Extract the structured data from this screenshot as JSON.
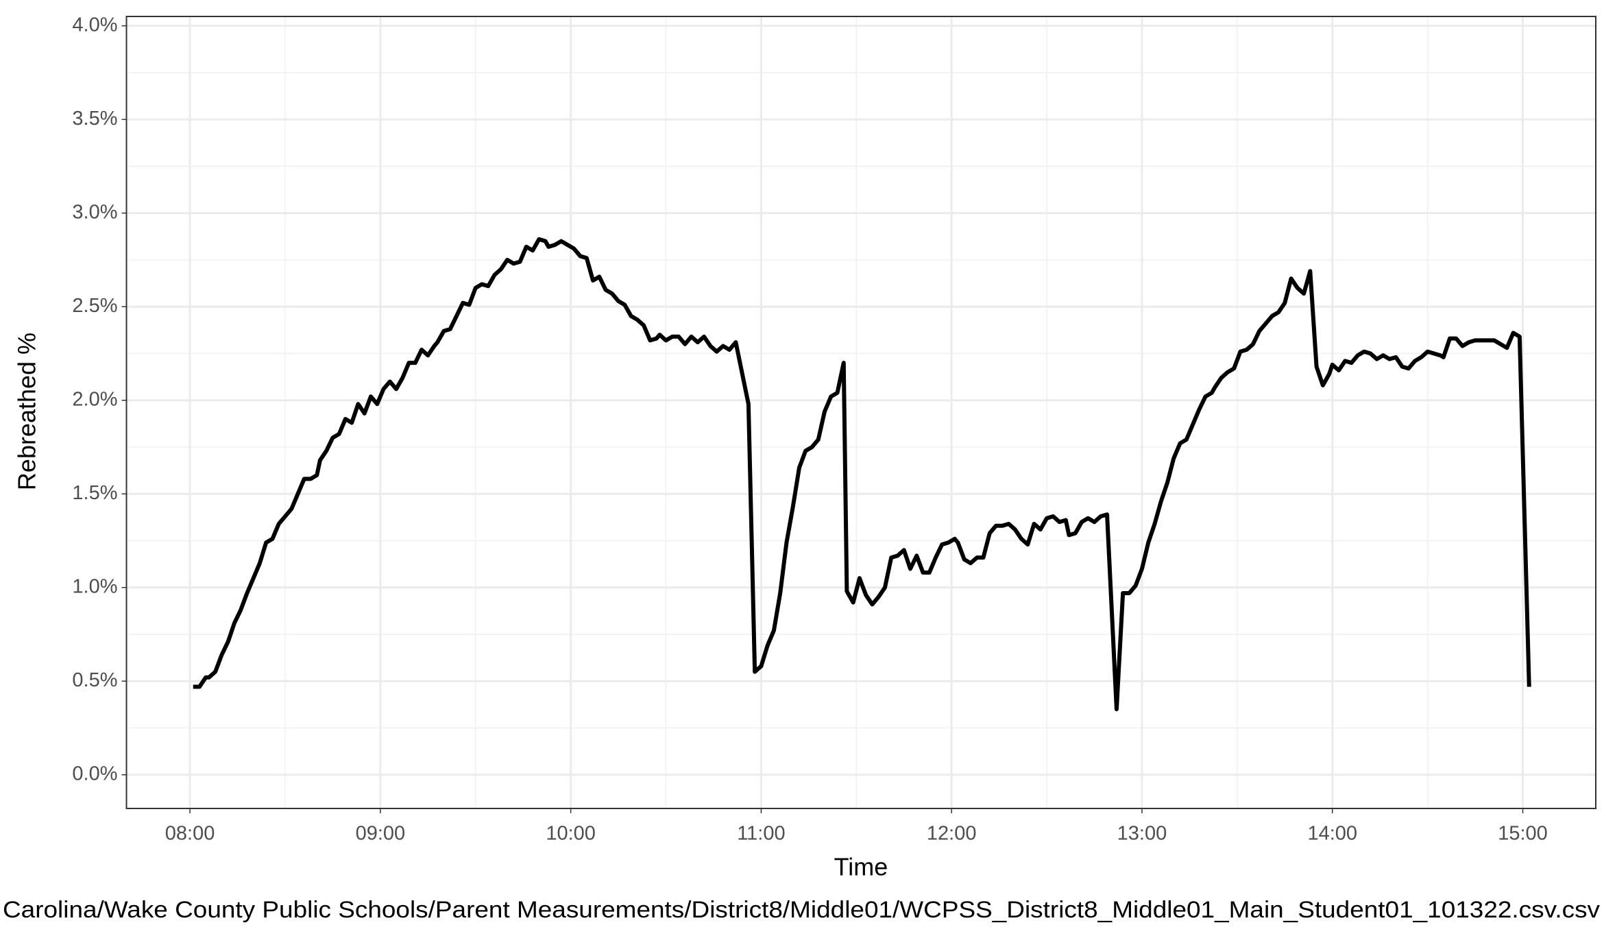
{
  "chart_data": {
    "type": "line",
    "xlabel": "Time",
    "ylabel": "Rebreathed %",
    "caption": "Carolina/Wake County Public Schools/Parent Measurements/District8/Middle01/WCPSS_District8_Middle01_Main_Student01_101322.csv.csv",
    "x": [
      "08:01",
      "08:03",
      "08:05",
      "08:06",
      "08:08",
      "08:10",
      "08:12",
      "08:14",
      "08:16",
      "08:18",
      "08:20",
      "08:22",
      "08:24",
      "08:26",
      "08:28",
      "08:30",
      "08:32",
      "08:34",
      "08:36",
      "08:38",
      "08:40",
      "08:41",
      "08:43",
      "08:45",
      "08:47",
      "08:49",
      "08:51",
      "08:53",
      "08:55",
      "08:57",
      "08:59",
      "09:01",
      "09:03",
      "09:05",
      "09:07",
      "09:09",
      "09:11",
      "09:13",
      "09:15",
      "09:17",
      "09:18",
      "09:20",
      "09:22",
      "09:24",
      "09:26",
      "09:28",
      "09:30",
      "09:32",
      "09:34",
      "09:36",
      "09:38",
      "09:40",
      "09:42",
      "09:44",
      "09:46",
      "09:48",
      "09:50",
      "09:52",
      "09:53",
      "09:55",
      "09:57",
      "09:59",
      "10:01",
      "10:03",
      "10:05",
      "10:07",
      "10:09",
      "10:11",
      "10:13",
      "10:15",
      "10:17",
      "10:19",
      "10:21",
      "10:23",
      "10:25",
      "10:27",
      "10:28",
      "10:30",
      "10:32",
      "10:34",
      "10:36",
      "10:38",
      "10:40",
      "10:42",
      "10:44",
      "10:46",
      "10:48",
      "10:50",
      "10:52",
      "10:56",
      "10:58",
      "11:00",
      "11:02",
      "11:04",
      "11:06",
      "11:08",
      "11:10",
      "11:12",
      "11:14",
      "11:16",
      "11:18",
      "11:20",
      "11:22",
      "11:24",
      "11:26",
      "11:27",
      "11:29",
      "11:31",
      "11:33",
      "11:35",
      "11:37",
      "11:39",
      "11:41",
      "11:43",
      "11:45",
      "11:47",
      "11:49",
      "11:51",
      "11:53",
      "11:55",
      "11:57",
      "11:59",
      "12:01",
      "12:02",
      "12:04",
      "12:06",
      "12:08",
      "12:10",
      "12:12",
      "12:14",
      "12:16",
      "12:18",
      "12:20",
      "12:22",
      "12:24",
      "12:26",
      "12:28",
      "12:30",
      "12:32",
      "12:34",
      "12:36",
      "12:37",
      "12:39",
      "12:41",
      "12:43",
      "12:45",
      "12:47",
      "12:49",
      "12:52",
      "12:54",
      "12:56",
      "12:58",
      "13:00",
      "13:02",
      "13:04",
      "13:06",
      "13:08",
      "13:10",
      "13:12",
      "13:14",
      "13:16",
      "13:18",
      "13:20",
      "13:22",
      "13:23",
      "13:25",
      "13:27",
      "13:29",
      "13:31",
      "13:33",
      "13:35",
      "13:37",
      "13:39",
      "13:41",
      "13:43",
      "13:45",
      "13:47",
      "13:49",
      "13:51",
      "13:53",
      "13:55",
      "13:57",
      "13:59",
      "14:00",
      "14:02",
      "14:04",
      "14:06",
      "14:08",
      "14:10",
      "14:12",
      "14:14",
      "14:16",
      "14:18",
      "14:20",
      "14:22",
      "14:24",
      "14:26",
      "14:28",
      "14:30",
      "14:32",
      "14:34",
      "14:35",
      "14:37",
      "14:39",
      "14:41",
      "14:43",
      "14:45",
      "14:47",
      "14:49",
      "14:51",
      "14:53",
      "14:55",
      "14:57",
      "14:59",
      "15:02"
    ],
    "series": [
      {
        "color": "#000000",
        "values": [
          0.47,
          0.47,
          0.52,
          0.52,
          0.55,
          0.64,
          0.71,
          0.81,
          0.88,
          0.97,
          1.05,
          1.13,
          1.24,
          1.26,
          1.34,
          1.38,
          1.42,
          1.5,
          1.58,
          1.58,
          1.6,
          1.68,
          1.73,
          1.8,
          1.82,
          1.9,
          1.88,
          1.98,
          1.93,
          2.02,
          1.98,
          2.06,
          2.1,
          2.06,
          2.12,
          2.2,
          2.2,
          2.27,
          2.24,
          2.29,
          2.31,
          2.37,
          2.38,
          2.45,
          2.52,
          2.51,
          2.6,
          2.62,
          2.61,
          2.67,
          2.7,
          2.75,
          2.73,
          2.74,
          2.82,
          2.8,
          2.86,
          2.85,
          2.82,
          2.83,
          2.85,
          2.83,
          2.81,
          2.77,
          2.76,
          2.64,
          2.66,
          2.59,
          2.57,
          2.53,
          2.51,
          2.45,
          2.43,
          2.4,
          2.32,
          2.33,
          2.35,
          2.32,
          2.34,
          2.34,
          2.3,
          2.34,
          2.31,
          2.34,
          2.29,
          2.26,
          2.29,
          2.27,
          2.31,
          1.98,
          0.55,
          0.58,
          0.69,
          0.77,
          0.97,
          1.24,
          1.43,
          1.64,
          1.73,
          1.75,
          1.79,
          1.94,
          2.02,
          2.04,
          2.2,
          0.98,
          0.92,
          1.05,
          0.96,
          0.91,
          0.95,
          1.0,
          1.16,
          1.17,
          1.2,
          1.1,
          1.17,
          1.08,
          1.08,
          1.16,
          1.23,
          1.24,
          1.26,
          1.24,
          1.15,
          1.13,
          1.16,
          1.16,
          1.29,
          1.33,
          1.33,
          1.34,
          1.31,
          1.26,
          1.23,
          1.34,
          1.31,
          1.37,
          1.38,
          1.35,
          1.36,
          1.28,
          1.29,
          1.35,
          1.37,
          1.35,
          1.38,
          1.39,
          0.35,
          0.97,
          0.97,
          1.01,
          1.1,
          1.24,
          1.34,
          1.46,
          1.56,
          1.69,
          1.77,
          1.79,
          1.87,
          1.95,
          2.02,
          2.04,
          2.07,
          2.12,
          2.15,
          2.17,
          2.26,
          2.27,
          2.3,
          2.37,
          2.41,
          2.45,
          2.47,
          2.52,
          2.65,
          2.6,
          2.57,
          2.69,
          2.18,
          2.08,
          2.14,
          2.19,
          2.16,
          2.21,
          2.2,
          2.24,
          2.26,
          2.25,
          2.22,
          2.24,
          2.22,
          2.23,
          2.18,
          2.17,
          2.21,
          2.23,
          2.26,
          2.25,
          2.24,
          2.23,
          2.33,
          2.33,
          2.29,
          2.31,
          2.32,
          2.32,
          2.32,
          2.32,
          2.3,
          2.28,
          2.36,
          2.34,
          0.47
        ]
      }
    ],
    "xlim": [
      "07:40",
      "15:23"
    ],
    "xticks": [
      "08:00",
      "09:00",
      "10:00",
      "11:00",
      "12:00",
      "13:00",
      "14:00",
      "15:00"
    ],
    "ylim": [
      -0.18,
      4.05
    ],
    "yticks": [
      {
        "value": 0,
        "label": "0.0%"
      },
      {
        "value": 0.5,
        "label": "0.5%"
      },
      {
        "value": 1,
        "label": "1.0%"
      },
      {
        "value": 1.5,
        "label": "1.5%"
      },
      {
        "value": 2,
        "label": "2.0%"
      },
      {
        "value": 2.5,
        "label": "2.5%"
      },
      {
        "value": 3,
        "label": "3.0%"
      },
      {
        "value": 3.5,
        "label": "3.5%"
      },
      {
        "value": 4,
        "label": "4.0%"
      }
    ],
    "grid": true,
    "minor_grid": true
  }
}
